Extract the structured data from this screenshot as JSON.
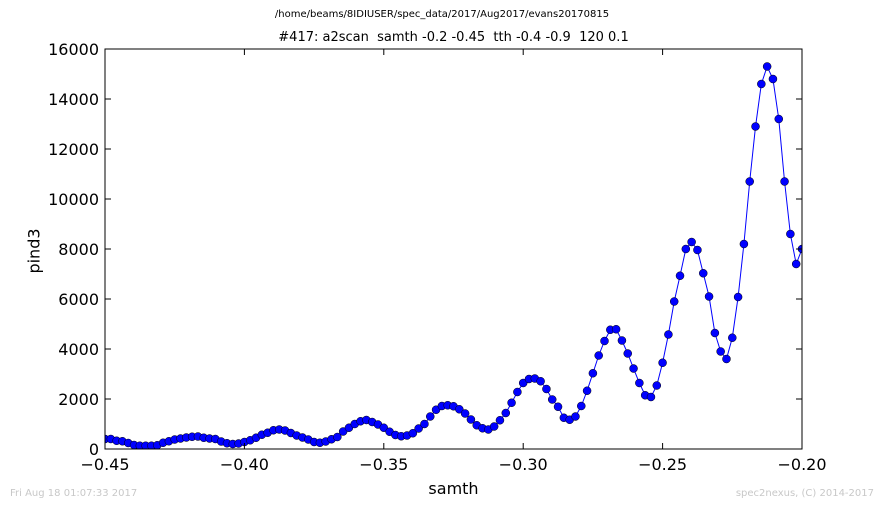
{
  "chart_data": {
    "type": "line",
    "suptitle": "/home/beams/8IDIUSER/spec_data/2017/Aug2017/evans20170815",
    "title": "#417: a2scan  samth -0.2 -0.45  tth -0.4 -0.9  120 0.1",
    "xlabel": "samth",
    "ylabel": "pind3",
    "xlim": [
      -0.45,
      -0.2
    ],
    "ylim": [
      0,
      16000
    ],
    "xticks": [
      "−0.45",
      "−0.40",
      "−0.35",
      "−0.30",
      "−0.25",
      "−0.20"
    ],
    "xtick_values": [
      -0.45,
      -0.4,
      -0.35,
      -0.3,
      -0.25,
      -0.2
    ],
    "yticks": [
      "0",
      "2000",
      "4000",
      "6000",
      "8000",
      "10000",
      "12000",
      "14000",
      "16000"
    ],
    "ytick_values": [
      0,
      2000,
      4000,
      6000,
      8000,
      10000,
      12000,
      14000,
      16000
    ],
    "grid": false,
    "line_color": "#0000ff",
    "marker_color": "#0000ff",
    "series": [
      {
        "x_start": -0.45,
        "x_step": 0.0020833,
        "values": [
          400,
          400,
          330,
          310,
          240,
          160,
          130,
          130,
          130,
          150,
          250,
          310,
          380,
          420,
          460,
          490,
          500,
          450,
          420,
          400,
          300,
          230,
          200,
          220,
          280,
          350,
          450,
          570,
          650,
          750,
          780,
          740,
          640,
          540,
          460,
          380,
          280,
          250,
          300,
          390,
          480,
          700,
          850,
          1000,
          1110,
          1160,
          1080,
          980,
          850,
          690,
          560,
          510,
          540,
          630,
          820,
          1000,
          1300,
          1570,
          1720,
          1750,
          1710,
          1590,
          1420,
          1180,
          950,
          830,
          780,
          900,
          1150,
          1440,
          1850,
          2280,
          2640,
          2800,
          2820,
          2710,
          2400,
          1980,
          1690,
          1250,
          1170,
          1300,
          1720,
          2330,
          3030,
          3740,
          4320,
          4770,
          4790,
          4340,
          3820,
          3220,
          2640,
          2150,
          2080,
          2540,
          3450,
          4580,
          5900,
          6930,
          8000,
          8280,
          7960,
          7030,
          6100,
          4640,
          3900,
          3600,
          4450,
          6080,
          8200,
          10700,
          12900,
          14600,
          15300,
          14800,
          13200,
          10700,
          8600,
          7400,
          8000
        ]
      }
    ],
    "footer_left": "Fri Aug 18 01:07:33 2017",
    "footer_right": "spec2nexus, (C) 2014-2017"
  }
}
